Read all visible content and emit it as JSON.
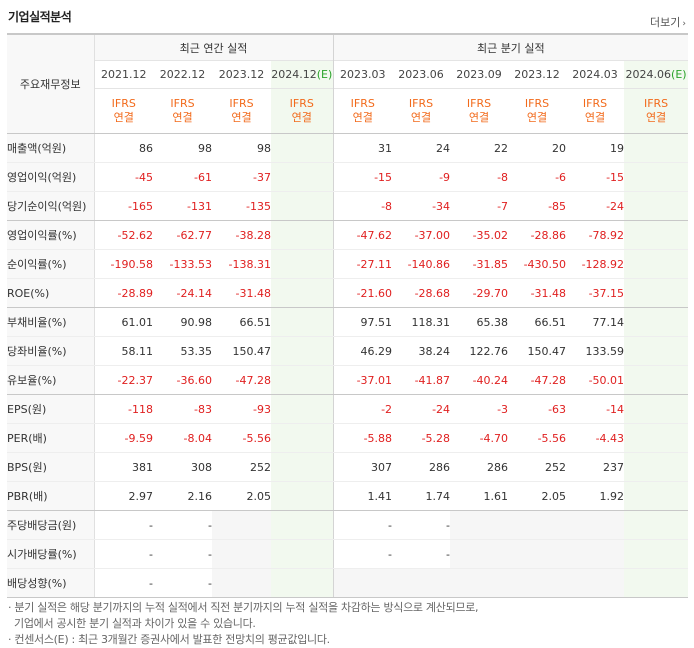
{
  "title": "기업실적분석",
  "more_label": "더보기",
  "header": {
    "row_label": "주요재무정보",
    "annual_group": "최근 연간 실적",
    "quarter_group": "최근 분기 실적",
    "annual_periods": [
      "2021.12",
      "2022.12",
      "2023.12",
      "2024.12(E)"
    ],
    "quarter_periods": [
      "2023.03",
      "2023.06",
      "2023.09",
      "2023.12",
      "2024.03",
      "2024.06(E)"
    ],
    "basis_line1": "IFRS",
    "basis_line2": "연결"
  },
  "rows": [
    {
      "label": "매출액(억원)",
      "values": [
        "86",
        "98",
        "98",
        "",
        "31",
        "24",
        "22",
        "20",
        "19",
        ""
      ]
    },
    {
      "label": "영업이익(억원)",
      "values": [
        "-45",
        "-61",
        "-37",
        "",
        "-15",
        "-9",
        "-8",
        "-6",
        "-15",
        ""
      ]
    },
    {
      "label": "당기순이익(억원)",
      "values": [
        "-165",
        "-131",
        "-135",
        "",
        "-8",
        "-34",
        "-7",
        "-85",
        "-24",
        ""
      ]
    },
    {
      "label": "영업이익률(%)",
      "values": [
        "-52.62",
        "-62.77",
        "-38.28",
        "",
        "-47.62",
        "-37.00",
        "-35.02",
        "-28.86",
        "-78.92",
        ""
      ]
    },
    {
      "label": "순이익률(%)",
      "values": [
        "-190.58",
        "-133.53",
        "-138.31",
        "",
        "-27.11",
        "-140.86",
        "-31.85",
        "-430.50",
        "-128.92",
        ""
      ]
    },
    {
      "label": "ROE(%)",
      "values": [
        "-28.89",
        "-24.14",
        "-31.48",
        "",
        "-21.60",
        "-28.68",
        "-29.70",
        "-31.48",
        "-37.15",
        ""
      ]
    },
    {
      "label": "부채비율(%)",
      "values": [
        "61.01",
        "90.98",
        "66.51",
        "",
        "97.51",
        "118.31",
        "65.38",
        "66.51",
        "77.14",
        ""
      ]
    },
    {
      "label": "당좌비율(%)",
      "values": [
        "58.11",
        "53.35",
        "150.47",
        "",
        "46.29",
        "38.24",
        "122.76",
        "150.47",
        "133.59",
        ""
      ]
    },
    {
      "label": "유보율(%)",
      "values": [
        "-22.37",
        "-36.60",
        "-47.28",
        "",
        "-37.01",
        "-41.87",
        "-40.24",
        "-47.28",
        "-50.01",
        ""
      ]
    },
    {
      "label": "EPS(원)",
      "values": [
        "-118",
        "-83",
        "-93",
        "",
        "-2",
        "-24",
        "-3",
        "-63",
        "-14",
        ""
      ]
    },
    {
      "label": "PER(배)",
      "values": [
        "-9.59",
        "-8.04",
        "-5.56",
        "",
        "-5.88",
        "-5.28",
        "-4.70",
        "-5.56",
        "-4.43",
        ""
      ]
    },
    {
      "label": "BPS(원)",
      "values": [
        "381",
        "308",
        "252",
        "",
        "307",
        "286",
        "286",
        "252",
        "237",
        ""
      ]
    },
    {
      "label": "PBR(배)",
      "values": [
        "2.97",
        "2.16",
        "2.05",
        "",
        "1.41",
        "1.74",
        "1.61",
        "2.05",
        "1.92",
        ""
      ]
    },
    {
      "label": "주당배당금(원)",
      "values": [
        "-",
        "-",
        "",
        "",
        "-",
        "-",
        "",
        "",
        "",
        ""
      ]
    },
    {
      "label": "시가배당률(%)",
      "values": [
        "-",
        "-",
        "",
        "",
        "-",
        "-",
        "",
        "",
        "",
        ""
      ]
    },
    {
      "label": "배당성향(%)",
      "values": [
        "-",
        "-",
        "",
        "",
        "",
        "",
        "",
        "",
        "",
        ""
      ]
    }
  ],
  "notes": [
    "분기 실적은 해당 분기까지의 누적 실적에서 직전 분기까지의 누적 실적을 차감하는 방식으로 계산되므로,",
    "기업에서 공시한 분기 실적과 차이가 있을 수 있습니다.",
    "컨센서스(E) : 최근 3개월간 증권사에서 발표한 전망치의 평균값입니다."
  ],
  "colors": {
    "negative": "#e02020",
    "basis": "#f26a1b",
    "estimate_bg": "#f2f9ef",
    "empty_bg": "#f6f6f6"
  }
}
